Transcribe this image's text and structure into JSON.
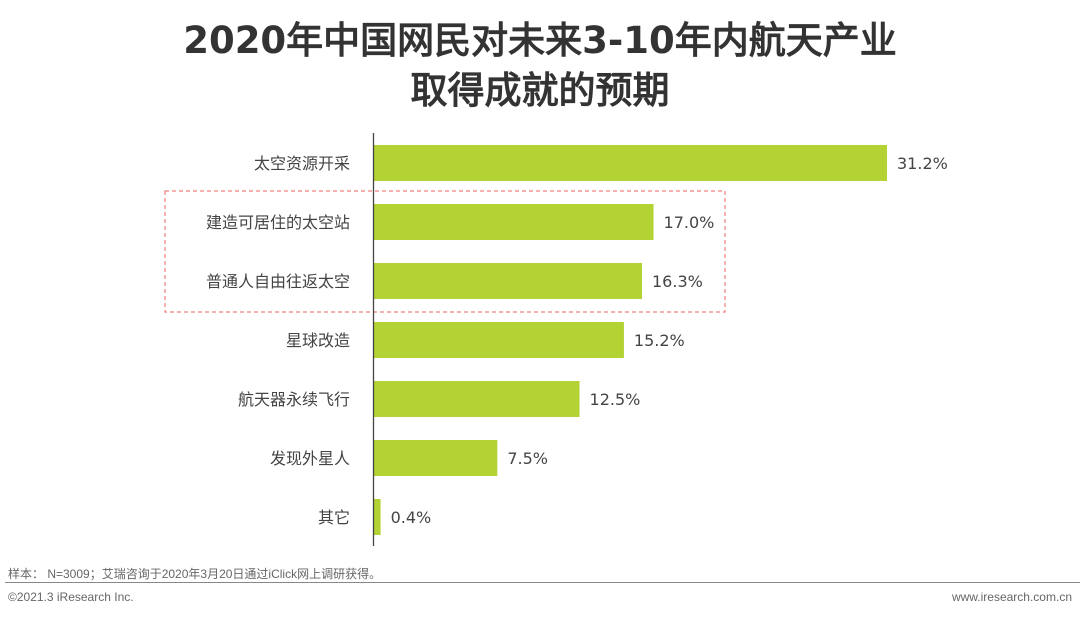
{
  "chart_data": {
    "type": "bar",
    "orientation": "horizontal",
    "title": "2020年中国网民对未来3-10年内航天产业取得成就的预期",
    "title_lines": [
      "2020年中国网民对未来3-10年内航天产业",
      "取得成就的预期"
    ],
    "categories": [
      "太空资源开采",
      "建造可居住的太空站",
      "普通人自由往返太空",
      "星球改造",
      "航天器永续飞行",
      "发现外星人",
      "其它"
    ],
    "values": [
      31.2,
      17.0,
      16.3,
      15.2,
      12.5,
      7.5,
      0.4
    ],
    "value_labels": [
      "31.2%",
      "17.0%",
      "16.3%",
      "15.2%",
      "12.5%",
      "7.5%",
      "0.4%"
    ],
    "unit": "%",
    "xlim": [
      0,
      31.2
    ],
    "grid": false,
    "highlighted_categories": [
      "建造可居住的太空站",
      "普通人自由往返太空"
    ],
    "bar_color": "#b3d234",
    "highlight_color": "#f08080"
  },
  "footer": {
    "source": "样本： N=3009；艾瑞咨询于2020年3月20日通过iClick网上调研获得。",
    "copyright": "©2021.3 iResearch Inc.",
    "website": "www.iresearch.com.cn"
  }
}
